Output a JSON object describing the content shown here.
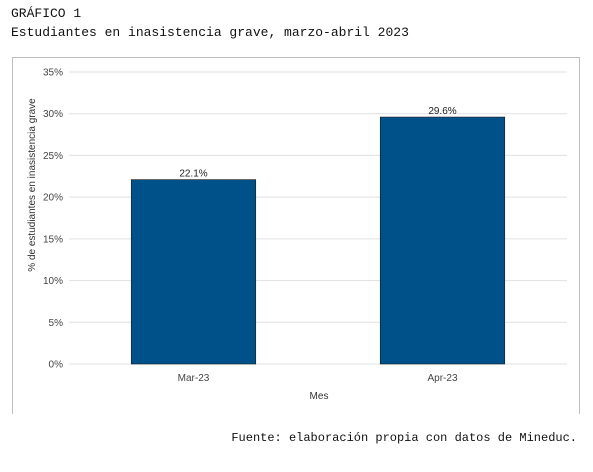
{
  "header": {
    "label": "GRÁFICO 1",
    "title": "Estudiantes en inasistencia grave, marzo-abril 2023"
  },
  "source": "Fuente: elaboración propia con datos de Mineduc.",
  "chart_data": {
    "type": "bar",
    "categories": [
      "Mar-23",
      "Apr-23"
    ],
    "values": [
      22.1,
      29.6
    ],
    "data_labels": [
      "22.1%",
      "29.6%"
    ],
    "title": "",
    "xlabel": "Mes",
    "ylabel": "% de estudiantes en inasistencia grave",
    "ylim": [
      0,
      35
    ],
    "yticks": [
      0,
      5,
      10,
      15,
      20,
      25,
      30,
      35
    ],
    "ytick_labels": [
      "0%",
      "5%",
      "10%",
      "15%",
      "20%",
      "25%",
      "30%",
      "35%"
    ],
    "grid": true,
    "bar_color": "#00508a"
  }
}
